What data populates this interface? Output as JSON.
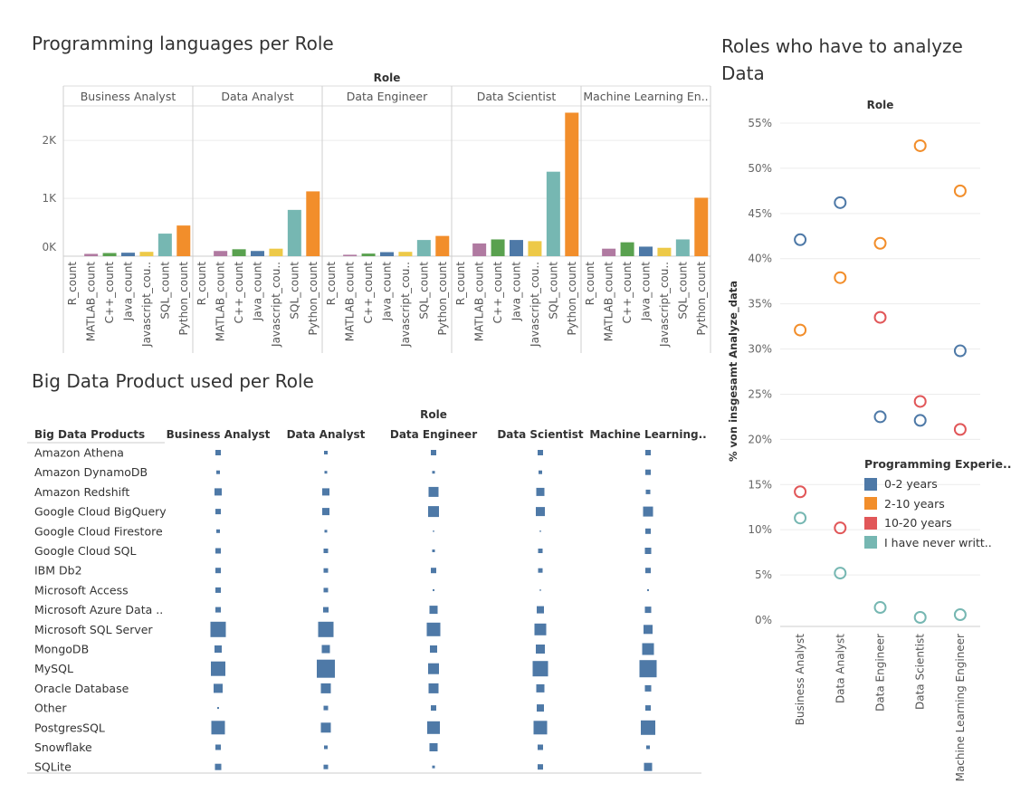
{
  "dashboard": {
    "title_languages": "Programming languages per Role",
    "title_bigdata": "Big Data Product used per Role",
    "title_analyze": "Roles who have to analyze Data"
  },
  "colors": {
    "R_count": "#b07aa1",
    "MATLAB_count": "#b07aa1",
    "C++_count": "#59a14f",
    "Java_count": "#4e79a7",
    "Javascript_count": "#edc948",
    "SQL_count": "#76b7b2",
    "Python_count": "#f28e2b",
    "square": "#4e79a7",
    "exp_0_2": "#4e79a7",
    "exp_2_10": "#f28e2b",
    "exp_10_20": "#e15759",
    "exp_never": "#76b7b2"
  },
  "chart_data": [
    {
      "id": "languages",
      "type": "bar",
      "title": "Programming languages per Role",
      "column_header": "Role",
      "roles": [
        "Business Analyst",
        "Data Analyst",
        "Data Engineer",
        "Data Scientist",
        "Machine Learning En.."
      ],
      "categories": [
        "R_count",
        "MATLAB_count",
        "C++_count",
        "Java_count",
        "Javascript_cou..",
        "SQL_count",
        "Python_count"
      ],
      "series": [
        {
          "name": "Business Analyst",
          "values": [
            0,
            40,
            55,
            60,
            75,
            390,
            530
          ]
        },
        {
          "name": "Data Analyst",
          "values": [
            0,
            90,
            120,
            90,
            130,
            800,
            1120
          ]
        },
        {
          "name": "Data Engineer",
          "values": [
            0,
            25,
            45,
            70,
            75,
            280,
            350
          ]
        },
        {
          "name": "Data Scientist",
          "values": [
            0,
            220,
            290,
            280,
            260,
            1460,
            2480
          ]
        },
        {
          "name": "Machine Learning Engineer",
          "values": [
            0,
            130,
            240,
            165,
            145,
            290,
            1010
          ]
        }
      ],
      "y_ticks": [
        "0K",
        "1K",
        "2K"
      ],
      "ylim": [
        0,
        2550
      ],
      "grid": true
    },
    {
      "id": "bigdata",
      "type": "table",
      "title": "Big Data Product used per Role",
      "column_header": "Role",
      "row_header": "Big Data Products",
      "columns": [
        "Business Analyst",
        "Data Analyst",
        "Data Engineer",
        "Data Scientist",
        "Machine Learning.."
      ],
      "rows": [
        "Amazon Athena",
        "Amazon DynamoDB",
        "Amazon Redshift",
        "Google Cloud BigQuery",
        "Google Cloud Firestore",
        "Google Cloud SQL",
        "IBM Db2",
        "Microsoft Access",
        "Microsoft Azure Data ..",
        "Microsoft SQL Server",
        "MongoDB",
        "MySQL",
        "Oracle Database",
        "Other",
        "PostgresSQL",
        "Snowflake",
        "SQLite"
      ],
      "values": [
        [
          6,
          4,
          6,
          6,
          6
        ],
        [
          4,
          3,
          3,
          4,
          6
        ],
        [
          8,
          8,
          11,
          9,
          5
        ],
        [
          6,
          8,
          12,
          10,
          11
        ],
        [
          4,
          3,
          1.5,
          1.5,
          6
        ],
        [
          6,
          5,
          3,
          5,
          7
        ],
        [
          6,
          5,
          6,
          5,
          6
        ],
        [
          6,
          5,
          2,
          1.5,
          2
        ],
        [
          6,
          6,
          9,
          8,
          7
        ],
        [
          17,
          17,
          15,
          13,
          10
        ],
        [
          8,
          9,
          8,
          10,
          13
        ],
        [
          16,
          20,
          12,
          17,
          19
        ],
        [
          10,
          11,
          11,
          9,
          7
        ],
        [
          2,
          5,
          6,
          8,
          6
        ],
        [
          15,
          11,
          14,
          15,
          16
        ],
        [
          6,
          4,
          9,
          6,
          4
        ],
        [
          7,
          5,
          3,
          6,
          9
        ]
      ]
    },
    {
      "id": "analyze",
      "type": "scatter",
      "title": "Roles who have to analyze Data",
      "column_header": "Role",
      "categories": [
        "Business Analyst",
        "Data Analyst",
        "Data Engineer",
        "Data Scientist",
        "Machine Learning Engineer"
      ],
      "ylabel": "% von insgesamt Analyze_data",
      "y_ticks": [
        "0%",
        "5%",
        "10%",
        "15%",
        "20%",
        "25%",
        "30%",
        "35%",
        "40%",
        "45%",
        "50%",
        "55%"
      ],
      "ylim": [
        0,
        55
      ],
      "legend_title": "Programming Experie..",
      "legend_position": "right",
      "series": [
        {
          "name": "0-2 years",
          "values": [
            42.1,
            46.2,
            22.5,
            22.1,
            29.8
          ]
        },
        {
          "name": "2-10 years",
          "values": [
            32.1,
            37.9,
            41.7,
            52.5,
            47.5
          ]
        },
        {
          "name": "10-20 years",
          "values": [
            14.2,
            10.2,
            33.5,
            24.2,
            21.1
          ]
        },
        {
          "name": "I have never writt..",
          "values": [
            11.3,
            5.2,
            1.4,
            0.3,
            0.6
          ]
        }
      ]
    }
  ]
}
